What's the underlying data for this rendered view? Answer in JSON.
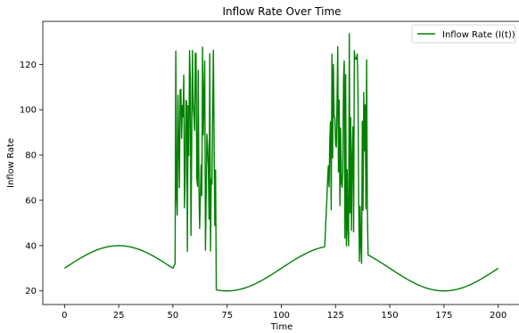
{
  "chart_data": {
    "type": "line",
    "title": "Inflow Rate Over Time",
    "xlabel": "Time",
    "ylabel": "Inflow Rate",
    "xlim": [
      -10,
      210
    ],
    "ylim": [
      14,
      139
    ],
    "xticks": [
      0,
      25,
      50,
      75,
      100,
      125,
      150,
      175,
      200
    ],
    "yticks": [
      20,
      40,
      60,
      80,
      100,
      120
    ],
    "grid": false,
    "legend_position": "top-right",
    "series": [
      {
        "name": "Inflow Rate (I(t))",
        "color": "#008000",
        "baseline_formula_note": "smooth segments follow approximately 30 + 10*sin(2*pi*t/100)",
        "smooth_segments": [
          [
            0,
            50
          ],
          [
            70,
            120
          ],
          [
            140,
            200
          ]
        ],
        "noisy_segments": [
          [
            50,
            70
          ],
          [
            120,
            140
          ]
        ],
        "noise_range": [
          28,
          134
        ],
        "x": [
          0,
          10,
          20,
          31,
          40,
          50,
          60,
          70,
          80,
          94,
          110,
          120,
          130,
          140,
          150,
          157,
          170,
          180,
          190,
          200
        ],
        "y": [
          30,
          35.9,
          39.5,
          40,
          38.4,
          36,
          71,
          27,
          23.7,
          20,
          25.9,
          27.3,
          85,
          36.4,
          39.5,
          40,
          37.5,
          33,
          28.1,
          24.6
        ]
      }
    ]
  }
}
